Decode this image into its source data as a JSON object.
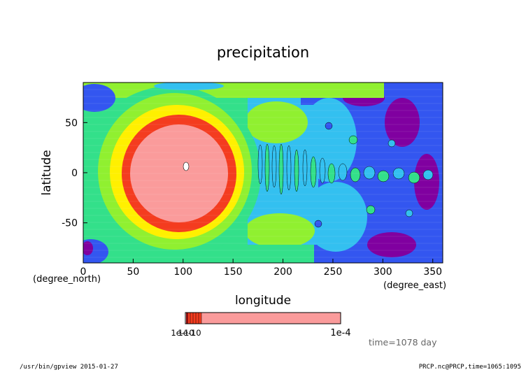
{
  "chart_data": {
    "type": "heatmap",
    "title": "precipitation",
    "xlabel": "longitude",
    "ylabel": "latitude",
    "x_unit": "(degree_east)",
    "y_unit": "(degree_north)",
    "xlim": [
      0,
      360
    ],
    "ylim": [
      -90,
      90
    ],
    "x_ticks": [
      0,
      50,
      100,
      150,
      200,
      250,
      300,
      350
    ],
    "y_ticks": [
      -50,
      0,
      50
    ],
    "grid": false,
    "colorbar": {
      "min_label": "1e-10",
      "max_label": "1e-4",
      "overlap_label": "1e-10",
      "scale": "log"
    },
    "annotation_time": "time=1078 day"
  },
  "footer": {
    "left": "/usr/bin/gpview  2015-01-27",
    "right": "PRCP.nc@PRCP,time=1065:1095"
  }
}
